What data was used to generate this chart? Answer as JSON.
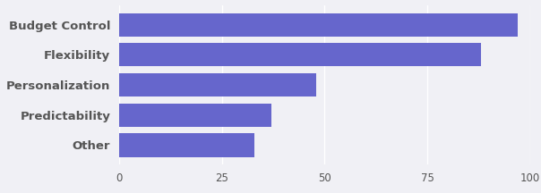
{
  "categories": [
    "Other",
    "Predictability",
    "Personalization",
    "Flexibility",
    "Budget Control"
  ],
  "values": [
    33,
    37,
    48,
    88,
    97
  ],
  "bar_color": "#6666cc",
  "background_color": "#f0f0f5",
  "xlim": [
    0,
    100
  ],
  "xticks": [
    0,
    25,
    50,
    75,
    100
  ],
  "bar_height": 0.78,
  "label_fontsize": 9.5,
  "tick_fontsize": 8.5,
  "label_color": "#555555",
  "grid_color": "#ffffff",
  "figsize": [
    6.04,
    2.16
  ],
  "dpi": 100
}
